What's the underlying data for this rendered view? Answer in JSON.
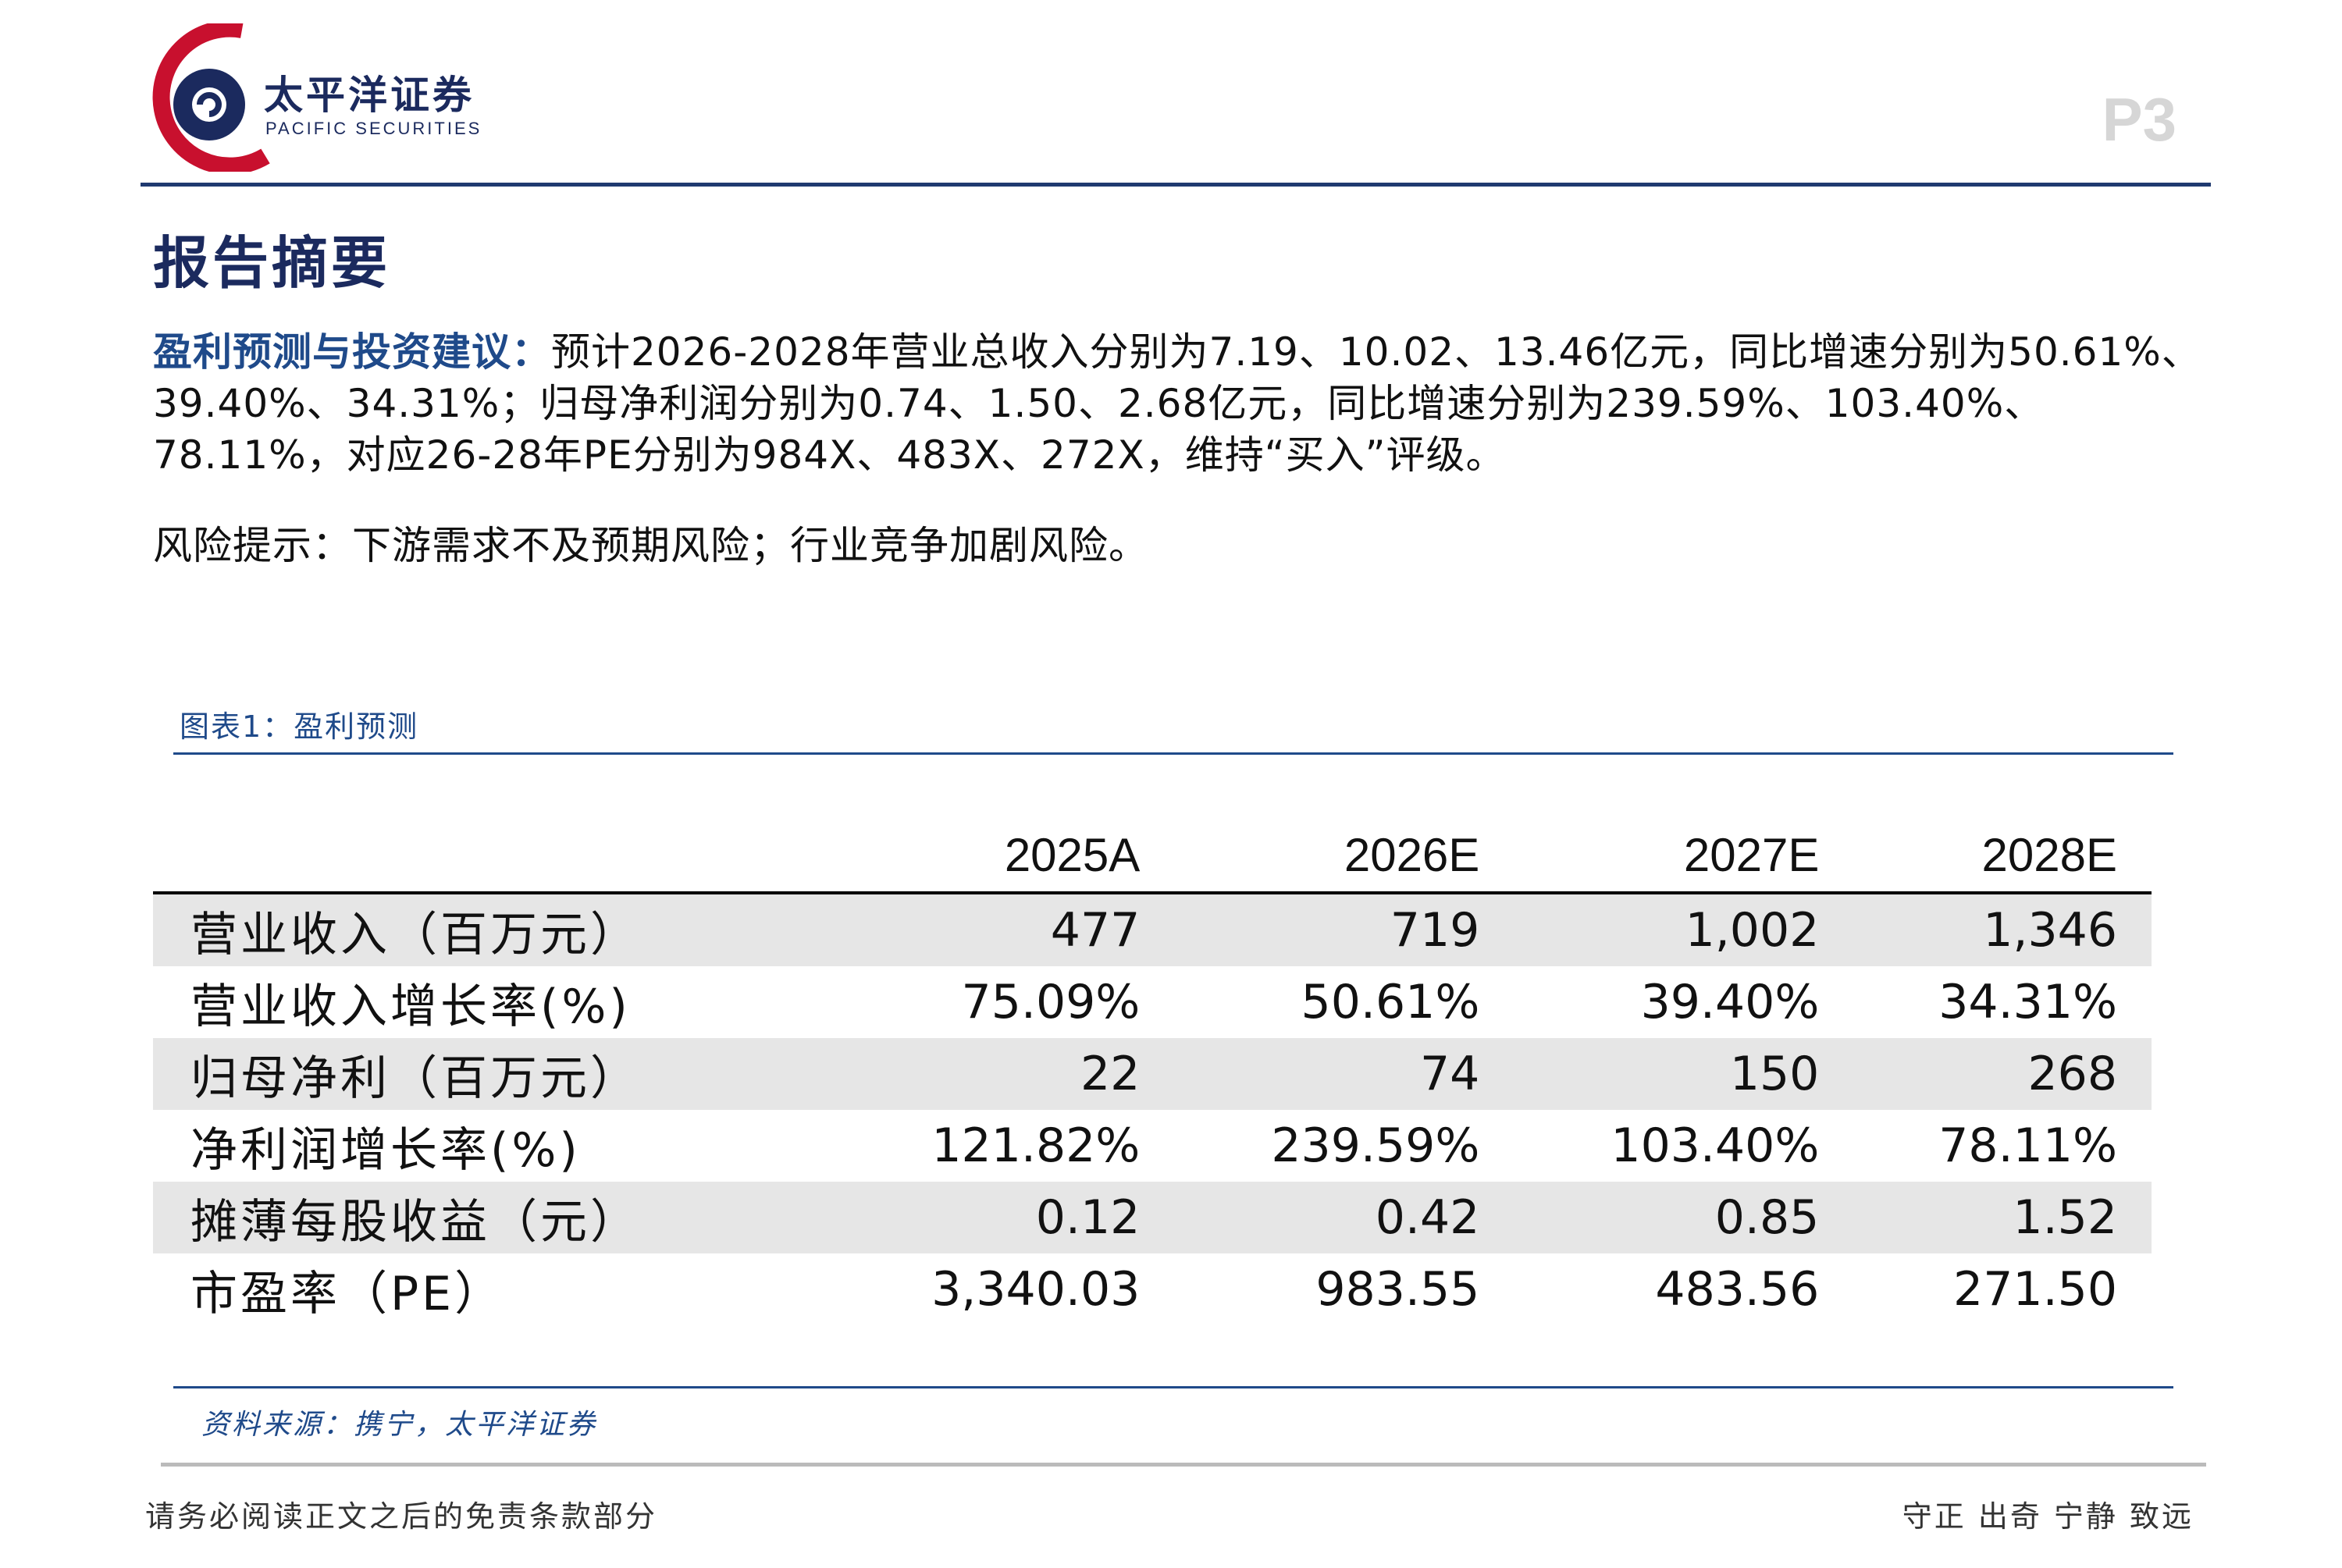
{
  "header": {
    "logo_cn": "太平洋证券",
    "logo_en": "PACIFIC SECURITIES",
    "page_number": "P3"
  },
  "section_title": "报告摘要",
  "summary": {
    "lead_label": "盈利预测与投资建议：",
    "lead_text": "预计2026-2028年营业总收入分别为7.19、10.02、13.46亿元，同比增速分别为50.61%、39.40%、34.31%；归母净利润分别为0.74、1.50、2.68亿元，同比增速分别为239.59%、103.40%、78.11%，对应26-28年PE分别为984X、483X、272X，维持“买入”评级。",
    "risk_text": "风险提示：下游需求不及预期风险；行业竞争加剧风险。"
  },
  "figure": {
    "title": "图表1：盈利预测",
    "source": "资料来源：携宁，太平洋证券"
  },
  "table": {
    "columns": [
      "",
      "2025A",
      "2026E",
      "2027E",
      "2028E"
    ],
    "rows": [
      {
        "label": "营业收入（百万元）",
        "values": [
          "477",
          "719",
          "1,002",
          "1,346"
        ]
      },
      {
        "label": "营业收入增长率(%)",
        "values": [
          "75.09%",
          "50.61%",
          "39.40%",
          "34.31%"
        ]
      },
      {
        "label": "归母净利（百万元）",
        "values": [
          "22",
          "74",
          "150",
          "268"
        ]
      },
      {
        "label": "净利润增长率(%)",
        "values": [
          "121.82%",
          "239.59%",
          "103.40%",
          "78.11%"
        ]
      },
      {
        "label": "摊薄每股收益（元）",
        "values": [
          "0.12",
          "0.42",
          "0.85",
          "1.52"
        ]
      },
      {
        "label": "市盈率（PE）",
        "values": [
          "3,340.03",
          "983.55",
          "483.56",
          "271.50"
        ]
      }
    ]
  },
  "footer": {
    "disclaimer": "请务必阅读正文之后的免责条款部分",
    "motto": "守正 出奇 宁静 致远"
  },
  "colors": {
    "brand_navy": "#1b2a5e",
    "accent_blue": "#1f4a8a",
    "logo_red": "#c8102e",
    "row_shade": "#e6e6e6"
  }
}
